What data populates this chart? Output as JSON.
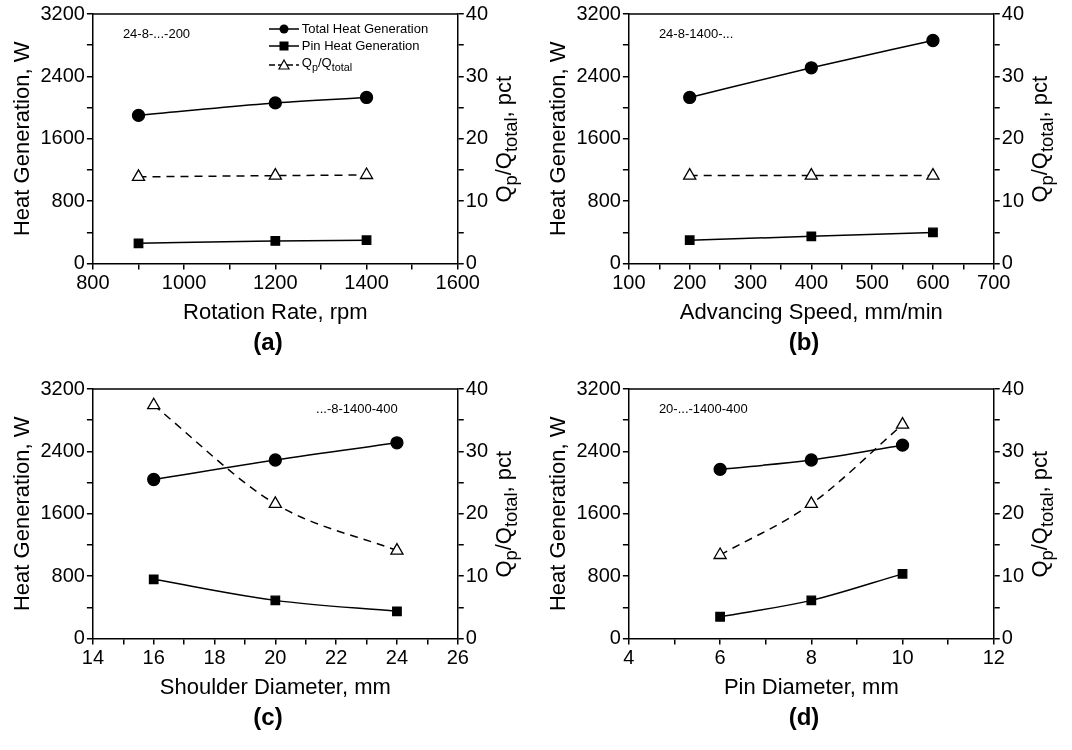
{
  "chart_data": [
    {
      "type": "line",
      "title": "(a)",
      "xlabel": "Rotation Rate, rpm",
      "ylabel": "Heat Generation, W",
      "y2label": "Q$_{p}$/Q$_{total}$, pct",
      "annotations": [
        "24-8-...-200"
      ],
      "legend": "top right",
      "xlim": [
        800,
        1600
      ],
      "xticks": [
        800,
        {
          "value": 900,
          "label": null
        },
        1000,
        {
          "value": 1100,
          "label": null
        },
        1200,
        {
          "value": 1300,
          "label": null
        },
        1400,
        {
          "value": 1500,
          "label": null
        },
        1600
      ],
      "ylim": [
        0,
        3200
      ],
      "yticks": [
        0,
        {
          "value": 400,
          "label": null
        },
        800,
        {
          "value": 1200,
          "label": null
        },
        1600,
        {
          "value": 2000,
          "label": null
        },
        2400,
        {
          "value": 2800,
          "label": null
        },
        3200
      ],
      "y2lim": [
        0,
        40
      ],
      "y2ticks": [
        0,
        {
          "value": 5,
          "label": null
        },
        10,
        {
          "value": 15,
          "label": null
        },
        20,
        {
          "value": 25,
          "label": null
        },
        30,
        {
          "value": 35,
          "label": null
        },
        40
      ],
      "x": [
        900,
        1200,
        1400
      ],
      "series": [
        {
          "name": "Total Heat Generation",
          "color": "#000000",
          "marker": "circle",
          "line_style": "solid",
          "values": [
            1900,
            2060,
            2130
          ]
        },
        {
          "name": "Pin Heat Generation",
          "color": "#000000",
          "marker": "square",
          "line_style": "solid",
          "values": [
            260,
            290,
            300
          ]
        },
        {
          "name": "Q$_{p}$/Q$_{total}$",
          "color": "#000000",
          "marker": "triangle",
          "line_style": "dashed",
          "axis": "y2",
          "values": [
            13.9,
            14.1,
            14.2
          ]
        }
      ]
    },
    {
      "type": "line",
      "title": "(b)",
      "xlabel": "Advancing Speed, mm/min",
      "ylabel": "Heat Generation, W",
      "y2label": "Q$_{p}$/Q$_{total}$, pct",
      "annotations": [
        "24-8-1400-..."
      ],
      "xlim": [
        100,
        700
      ],
      "xticks": [
        100,
        {
          "value": 150,
          "label": null
        },
        200,
        {
          "value": 250,
          "label": null
        },
        300,
        {
          "value": 350,
          "label": null
        },
        400,
        {
          "value": 450,
          "label": null
        },
        500,
        {
          "value": 550,
          "label": null
        },
        600,
        {
          "value": 650,
          "label": null
        },
        700
      ],
      "ylim": [
        0,
        3200
      ],
      "yticks": [
        0,
        {
          "value": 400,
          "label": null
        },
        800,
        {
          "value": 1200,
          "label": null
        },
        1600,
        {
          "value": 2000,
          "label": null
        },
        2400,
        {
          "value": 2800,
          "label": null
        },
        3200
      ],
      "y2lim": [
        0,
        40
      ],
      "y2ticks": [
        0,
        {
          "value": 5,
          "label": null
        },
        10,
        {
          "value": 15,
          "label": null
        },
        20,
        {
          "value": 25,
          "label": null
        },
        30,
        {
          "value": 35,
          "label": null
        },
        40
      ],
      "x": [
        200,
        400,
        600
      ],
      "series": [
        {
          "color": "#000000",
          "marker": "circle",
          "line_style": "solid",
          "values": [
            2130,
            2510,
            2860
          ]
        },
        {
          "color": "#000000",
          "marker": "square",
          "line_style": "solid",
          "values": [
            300,
            350,
            400
          ]
        },
        {
          "color": "#000000",
          "marker": "triangle",
          "line_style": "dashed",
          "axis": "y2",
          "values": [
            14.1,
            14.1,
            14.1
          ]
        }
      ]
    },
    {
      "type": "line",
      "title": "(c)",
      "xlabel": "Shoulder Diameter, mm",
      "ylabel": "Heat Generation, W",
      "y2label": "Q$_{p}$/Q$_{total}$, pct",
      "annotations": [
        "...-8-1400-400"
      ],
      "xlim": [
        14,
        26
      ],
      "xticks": [
        14,
        {
          "value": 15,
          "label": null
        },
        16,
        {
          "value": 17,
          "label": null
        },
        18,
        {
          "value": 19,
          "label": null
        },
        20,
        {
          "value": 21,
          "label": null
        },
        22,
        {
          "value": 23,
          "label": null
        },
        24,
        {
          "value": 25,
          "label": null
        },
        26
      ],
      "ylim": [
        0,
        3200
      ],
      "yticks": [
        0,
        {
          "value": 400,
          "label": null
        },
        800,
        {
          "value": 1200,
          "label": null
        },
        1600,
        {
          "value": 2000,
          "label": null
        },
        2400,
        {
          "value": 2800,
          "label": null
        },
        3200
      ],
      "y2lim": [
        0,
        40
      ],
      "y2ticks": [
        0,
        {
          "value": 5,
          "label": null
        },
        10,
        {
          "value": 15,
          "label": null
        },
        20,
        {
          "value": 25,
          "label": null
        },
        30,
        {
          "value": 35,
          "label": null
        },
        40
      ],
      "x": [
        16,
        20,
        24
      ],
      "series": [
        {
          "color": "#000000",
          "marker": "circle",
          "line_style": "solid",
          "values": [
            2040,
            2290,
            2510
          ]
        },
        {
          "color": "#000000",
          "marker": "square",
          "line_style": "solid",
          "values": [
            760,
            490,
            350
          ]
        },
        {
          "color": "#000000",
          "marker": "triangle",
          "line_style": "dashed",
          "axis": "y2",
          "values": [
            37.4,
            21.6,
            14.1
          ]
        }
      ]
    },
    {
      "type": "line",
      "title": "(d)",
      "xlabel": "Pin Diameter, mm",
      "ylabel": "Heat Generation, W",
      "y2label": "Q$_{p}$/Q$_{total}$, pct",
      "annotations": [
        "20-...-1400-400"
      ],
      "xlim": [
        4,
        12
      ],
      "xticks": [
        4,
        {
          "value": 5,
          "label": null
        },
        6,
        {
          "value": 7,
          "label": null
        },
        8,
        {
          "value": 9,
          "label": null
        },
        10,
        {
          "value": 11,
          "label": null
        },
        12
      ],
      "ylim": [
        0,
        3200
      ],
      "yticks": [
        0,
        {
          "value": 400,
          "label": null
        },
        800,
        {
          "value": 1200,
          "label": null
        },
        1600,
        {
          "value": 2000,
          "label": null
        },
        2400,
        {
          "value": 2800,
          "label": null
        },
        3200
      ],
      "y2lim": [
        0,
        40
      ],
      "y2ticks": [
        0,
        {
          "value": 5,
          "label": null
        },
        10,
        {
          "value": 15,
          "label": null
        },
        20,
        {
          "value": 25,
          "label": null
        },
        30,
        {
          "value": 35,
          "label": null
        },
        40
      ],
      "x": [
        6,
        8,
        10
      ],
      "series": [
        {
          "color": "#000000",
          "marker": "circle",
          "line_style": "solid",
          "values": [
            2170,
            2290,
            2480
          ]
        },
        {
          "color": "#000000",
          "marker": "square",
          "line_style": "solid",
          "values": [
            280,
            490,
            830
          ]
        },
        {
          "color": "#000000",
          "marker": "triangle",
          "line_style": "dashed",
          "axis": "y2",
          "values": [
            13.4,
            21.6,
            34.3
          ]
        }
      ]
    }
  ]
}
